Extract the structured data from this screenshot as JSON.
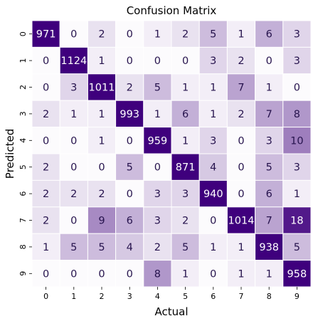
{
  "chart_data": {
    "type": "heatmap",
    "title": "Confusion Matrix",
    "xlabel": "Actual",
    "ylabel": "Predicted",
    "x_categories": [
      "0",
      "1",
      "2",
      "3",
      "4",
      "5",
      "6",
      "7",
      "8",
      "9"
    ],
    "y_categories": [
      "0",
      "1",
      "2",
      "3",
      "4",
      "5",
      "6",
      "7",
      "8",
      "9"
    ],
    "colormap": "Purples",
    "low_color": "#fcfbfd",
    "high_color": "#3f007d",
    "values": [
      [
        971,
        0,
        2,
        0,
        1,
        2,
        5,
        1,
        6,
        3
      ],
      [
        0,
        1124,
        1,
        0,
        0,
        0,
        3,
        2,
        0,
        3
      ],
      [
        0,
        3,
        1011,
        2,
        5,
        1,
        1,
        7,
        1,
        0
      ],
      [
        2,
        1,
        1,
        993,
        1,
        6,
        1,
        2,
        7,
        8
      ],
      [
        0,
        0,
        1,
        0,
        959,
        1,
        3,
        0,
        3,
        10
      ],
      [
        2,
        0,
        0,
        5,
        0,
        871,
        4,
        0,
        5,
        3
      ],
      [
        2,
        2,
        2,
        0,
        3,
        3,
        940,
        0,
        6,
        1
      ],
      [
        2,
        0,
        9,
        6,
        3,
        2,
        0,
        1014,
        7,
        18
      ],
      [
        1,
        5,
        5,
        4,
        2,
        5,
        1,
        1,
        938,
        5
      ],
      [
        0,
        0,
        0,
        0,
        8,
        1,
        0,
        1,
        1,
        958
      ]
    ],
    "color_vmin": 0,
    "color_vmax": 20,
    "colorbar": false,
    "grid": true
  }
}
